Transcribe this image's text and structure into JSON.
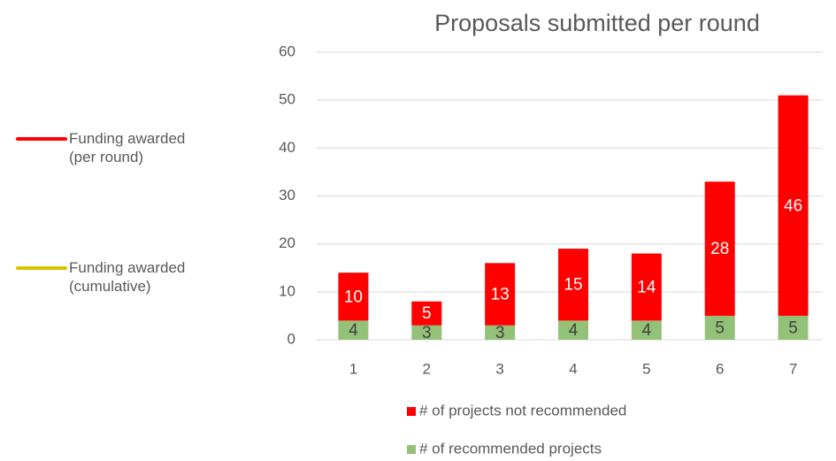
{
  "chart_data": {
    "type": "stacked_bar",
    "title": "Proposals submitted per round",
    "categories": [
      "1",
      "2",
      "3",
      "4",
      "5",
      "6",
      "7"
    ],
    "series": [
      {
        "name": "# of recommended projects",
        "color": "#94c178",
        "values": [
          4,
          3,
          3,
          4,
          4,
          5,
          5
        ]
      },
      {
        "name": "# of projects not recommended",
        "color": "#ff0000",
        "values": [
          10,
          5,
          13,
          15,
          14,
          28,
          46
        ]
      }
    ],
    "ylim": [
      0,
      60
    ],
    "yticks": [
      0,
      10,
      20,
      30,
      40,
      50,
      60
    ],
    "grid": true,
    "line_legend": [
      {
        "name": "Funding awarded (per round)",
        "color": "#ff0000"
      },
      {
        "name": "Funding awarded (cumulative)",
        "color": "#d4c400"
      }
    ]
  }
}
